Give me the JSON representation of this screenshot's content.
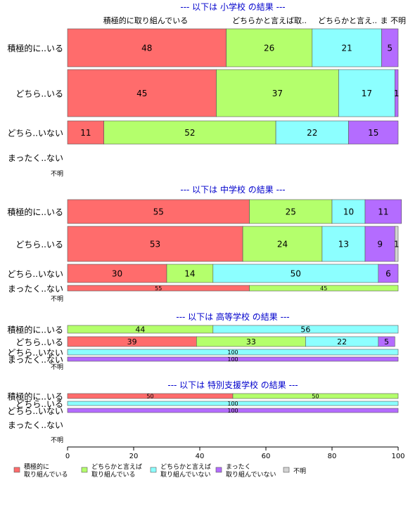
{
  "colors": {
    "s0": "#ff6c6c",
    "s1": "#b4ff6c",
    "s2": "#8cffff",
    "s3": "#b46cff",
    "s4": "#d3d3d3",
    "title": "#0000cc",
    "axis": "#000000"
  },
  "top_header": {
    "labels": [
      "積極的に取り組んでいる",
      "どちらかと言えば取..",
      "どちらかと言え..",
      "ま",
      "不明"
    ]
  },
  "legend": {
    "items": [
      {
        "line1": "積極的に",
        "line2": "取り組んでいる"
      },
      {
        "line1": "どちらかと言えば",
        "line2": "取り組んでいる"
      },
      {
        "line1": "どちらかと言えば",
        "line2": "取り組んでいない"
      },
      {
        "line1": "まったく",
        "line2": "取り組んでいない"
      },
      {
        "line1": "不明",
        "line2": ""
      }
    ]
  },
  "chart_data": {
    "type": "bar",
    "orientation": "horizontal",
    "stacked": true,
    "xlim": [
      0,
      100
    ],
    "xticks": [
      0,
      20,
      40,
      60,
      80,
      100
    ],
    "series_names": [
      "積極的に取り組んでいる",
      "どちらかと言えば取り組んでいる",
      "どちらかと言えば取り組んでいない",
      "まったく取り組んでいない",
      "不明"
    ],
    "panels": [
      {
        "title": "--- 以下は 小学校 の結果 ---",
        "rows": [
          {
            "label": "積極的に..いる",
            "values": [
              48,
              26,
              21,
              5,
              0
            ],
            "weight": 12.5
          },
          {
            "label": "どちら..いる",
            "values": [
              45,
              37,
              17,
              1,
              0
            ],
            "weight": 15
          },
          {
            "label": "どちら..いない",
            "values": [
              11,
              52,
              22,
              15,
              0
            ],
            "weight": 7.5
          },
          {
            "label": "まったく..ない",
            "values": [
              0,
              0,
              0,
              0,
              0
            ],
            "weight": 0
          },
          {
            "label": "不明",
            "values": [
              0,
              0,
              0,
              0,
              0
            ],
            "weight": 0
          }
        ]
      },
      {
        "title": "--- 以下は 中学校 の結果 ---",
        "rows": [
          {
            "label": "積極的に..いる",
            "values": [
              55,
              25,
              10,
              11,
              0
            ],
            "weight": 7
          },
          {
            "label": "どちら..いる",
            "values": [
              53,
              24,
              13,
              9,
              1
            ],
            "weight": 7.5
          },
          {
            "label": "どちら..いない",
            "values": [
              30,
              14,
              50,
              6,
              0
            ],
            "weight": 5
          },
          {
            "label": "まったく..ない",
            "values": [
              55,
              45,
              0,
              0,
              0
            ],
            "weight": 1.7
          },
          {
            "label": "不明",
            "values": [
              0,
              0,
              0,
              0,
              0
            ],
            "weight": 0
          }
        ]
      },
      {
        "title": "--- 以下は 高等学校 の結果 ---",
        "rows": [
          {
            "label": "積極的に..いる",
            "values": [
              0,
              44,
              56,
              0,
              0
            ],
            "weight": 2.5
          },
          {
            "label": "どちら..いる",
            "values": [
              39,
              33,
              22,
              5,
              0
            ],
            "weight": 3
          },
          {
            "label": "どちら..いない",
            "values": [
              0,
              0,
              100,
              0,
              0
            ],
            "weight": 1
          },
          {
            "label": "まったく..ない",
            "values": [
              0,
              0,
              0,
              100,
              0
            ],
            "weight": 1
          },
          {
            "label": "不明",
            "values": [
              0,
              0,
              0,
              0,
              0
            ],
            "weight": 0
          }
        ]
      },
      {
        "title": "--- 以下は 特別支援学校 の結果 ---",
        "rows": [
          {
            "label": "積極的に..いる",
            "values": [
              50,
              50,
              0,
              0,
              0
            ],
            "weight": 1
          },
          {
            "label": "どちら..いる",
            "values": [
              0,
              0,
              100,
              0,
              0
            ],
            "weight": 1
          },
          {
            "label": "どちら..いない",
            "values": [
              0,
              0,
              0,
              100,
              0
            ],
            "weight": 1
          },
          {
            "label": "まったく..ない",
            "values": [
              0,
              0,
              0,
              0,
              0
            ],
            "weight": 0
          },
          {
            "label": "不明",
            "values": [
              0,
              0,
              0,
              0,
              0
            ],
            "weight": 0
          }
        ]
      }
    ]
  }
}
